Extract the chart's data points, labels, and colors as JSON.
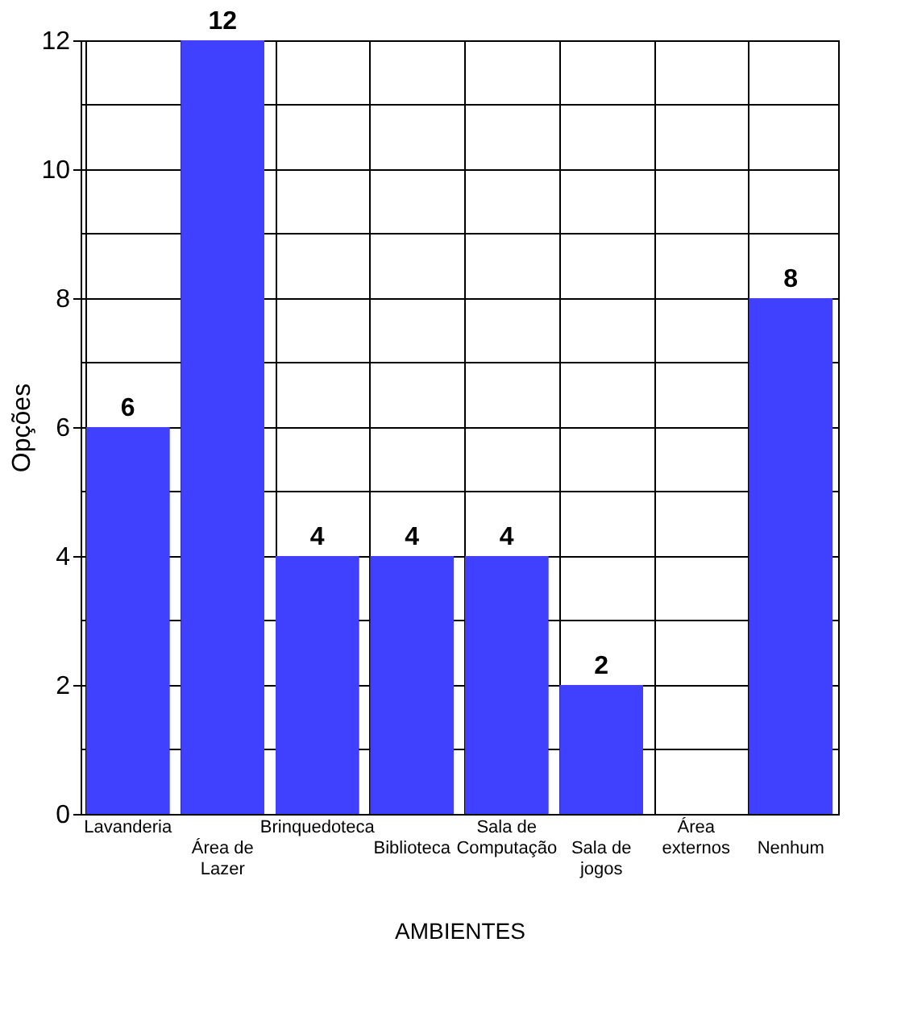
{
  "chart_data": {
    "type": "bar",
    "xlabel": "AMBIENTES",
    "ylabel": "Opções",
    "categories": [
      "Lavanderia",
      "Área de Lazer",
      "Brinquedoteca",
      "Biblioteca",
      "Sala de Computação",
      "Sala de jogos",
      "Área externos",
      "Nenhum"
    ],
    "values": [
      6,
      12,
      4,
      4,
      4,
      2,
      0,
      8
    ],
    "value_labels": [
      "6",
      "12",
      "4",
      "4",
      "4",
      "2",
      null,
      "8"
    ],
    "color": "#4040ff",
    "ylim": [
      0,
      12
    ],
    "yticks": [
      0,
      {
        "value": 1,
        "label": null
      },
      2,
      {
        "value": 3,
        "label": null
      },
      4,
      {
        "value": 5,
        "label": null
      },
      6,
      {
        "value": 7,
        "label": null
      },
      8,
      {
        "value": 9,
        "label": null
      },
      10,
      {
        "value": 11,
        "label": null
      },
      12
    ],
    "grid": true
  }
}
